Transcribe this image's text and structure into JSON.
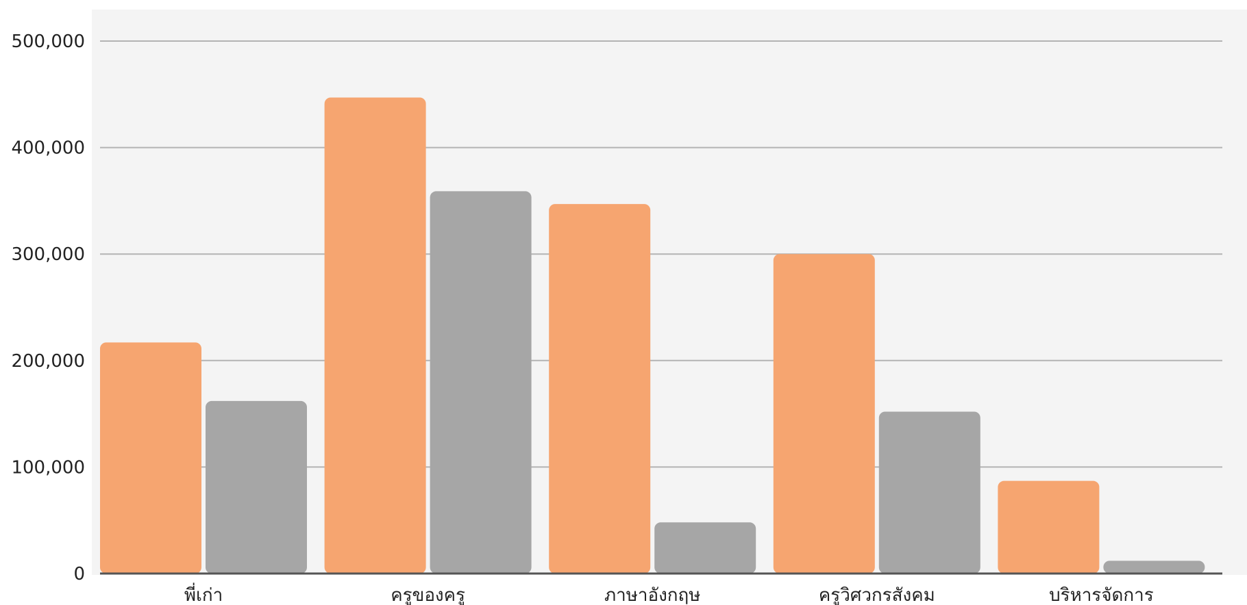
{
  "chart_data": {
    "type": "bar",
    "categories": [
      "พี่เก่า",
      "ครูของครู",
      "ภาษาอังกฤษ",
      "ครูวิศวกรสังคม",
      "บริหารจัดการ"
    ],
    "series": [
      {
        "values": [
          217000,
          447000,
          347000,
          300000,
          87000
        ],
        "color": "#f6a570"
      },
      {
        "values": [
          162000,
          359000,
          48000,
          152000,
          12000
        ],
        "color": "#a6a6a6"
      }
    ],
    "ylim": [
      0,
      500000
    ],
    "yticks": [
      0,
      100000,
      200000,
      300000,
      400000,
      500000
    ],
    "ytick_labels": [
      "0",
      "100,000",
      "200,000",
      "300,000",
      "400,000",
      "500,000"
    ],
    "grid": true,
    "legend": "none",
    "plot_background": "#f4f4f4",
    "grid_color": "#b3b3b3",
    "baseline_color": "#555555"
  }
}
